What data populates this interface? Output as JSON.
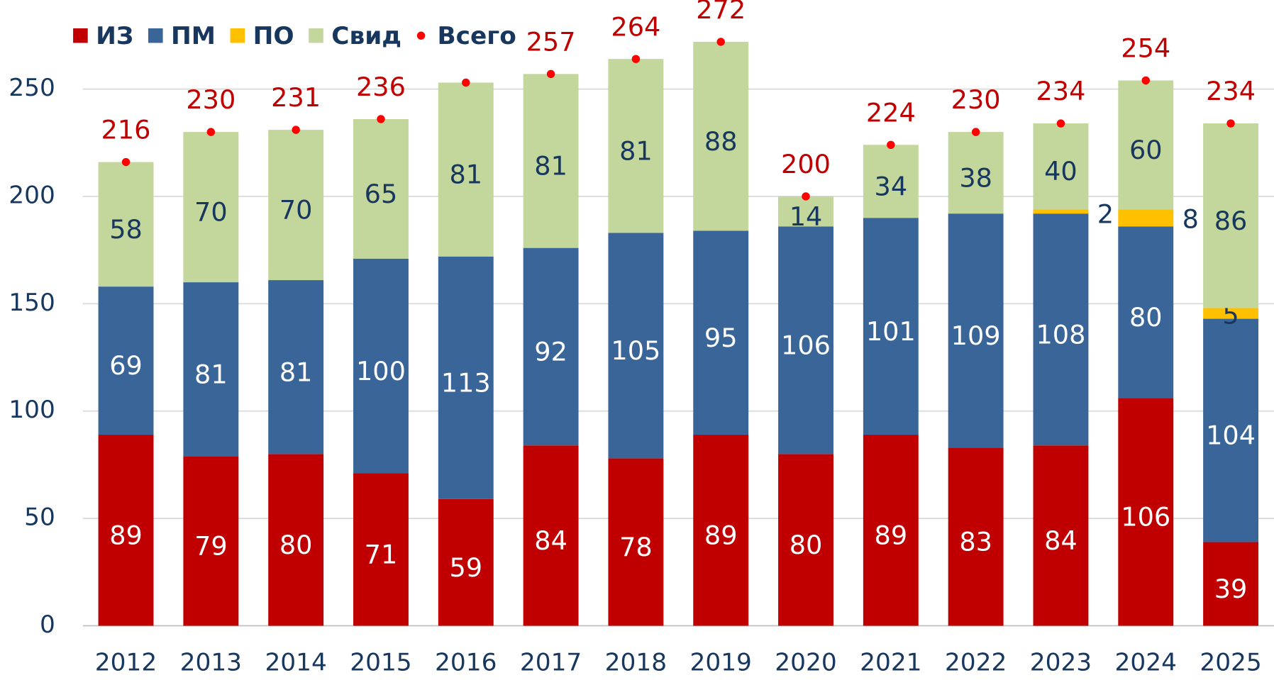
{
  "chart_data": {
    "type": "stacked_bar",
    "categories": [
      "2012",
      "2013",
      "2014",
      "2015",
      "2016",
      "2017",
      "2018",
      "2019",
      "2020",
      "2021",
      "2022",
      "2023",
      "2024",
      "2025"
    ],
    "series": [
      {
        "name": "ИЗ",
        "color": "#c00000",
        "values": [
          89,
          79,
          80,
          71,
          59,
          84,
          78,
          89,
          80,
          89,
          83,
          84,
          106,
          39
        ]
      },
      {
        "name": "ПМ",
        "color": "#3a6598",
        "values": [
          69,
          81,
          81,
          100,
          113,
          92,
          105,
          95,
          106,
          101,
          109,
          108,
          80,
          104
        ]
      },
      {
        "name": "ПО",
        "color": "#ffc000",
        "values": [
          0,
          0,
          0,
          0,
          0,
          0,
          0,
          0,
          0,
          0,
          0,
          2,
          8,
          5
        ]
      },
      {
        "name": "Свид",
        "color": "#c3d69b",
        "values": [
          58,
          70,
          70,
          65,
          81,
          81,
          81,
          88,
          14,
          34,
          38,
          40,
          60,
          86
        ]
      }
    ],
    "total": {
      "name": "Всего",
      "color": "#ff0000",
      "values": [
        216,
        230,
        231,
        236,
        253,
        257,
        264,
        272,
        200,
        224,
        230,
        234,
        254,
        234
      ],
      "value_labels": [
        "216",
        "230",
        "231",
        "236",
        null,
        "257",
        "264",
        "272",
        "200",
        "224",
        "230",
        "234",
        "254",
        "234"
      ]
    },
    "ylim": [
      0,
      250
    ],
    "yticks": [
      0,
      50,
      100,
      150,
      200,
      250
    ],
    "grid": true
  }
}
